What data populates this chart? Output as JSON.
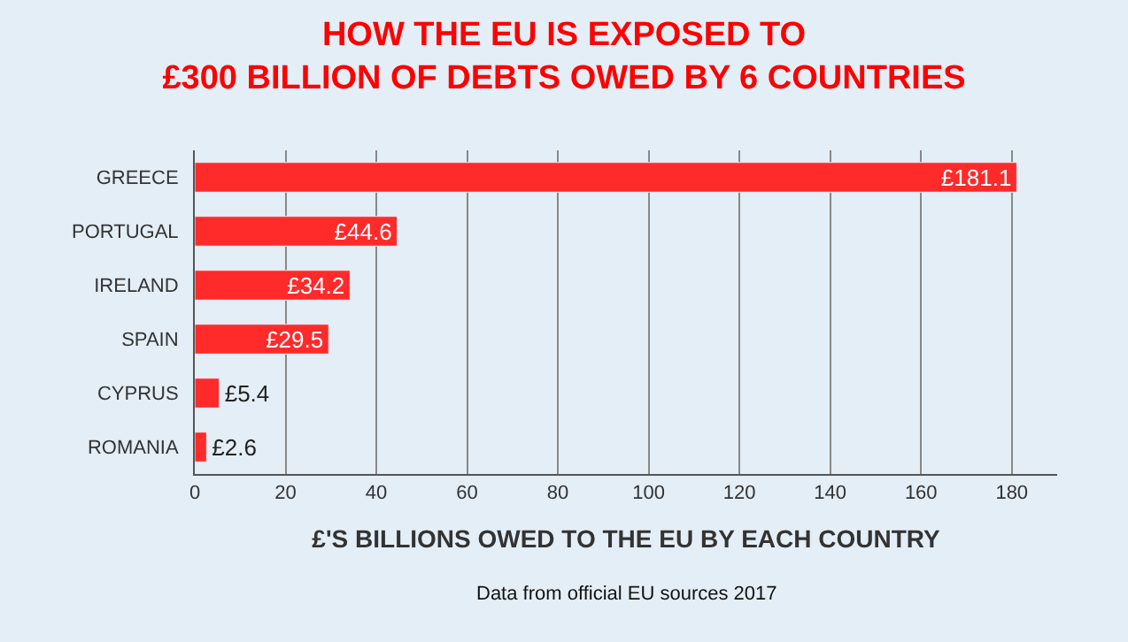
{
  "chart_data": {
    "type": "bar",
    "orientation": "horizontal",
    "title": "HOW THE EU IS EXPOSED TO\n£300 BILLION OF DEBTS OWED BY 6 COUNTRIES",
    "xlabel": "£'S BILLIONS OWED TO THE EU BY EACH COUNTRY",
    "categories": [
      "GREECE",
      "PORTUGAL",
      "IRELAND",
      "SPAIN",
      "CYPRUS",
      "ROMANIA"
    ],
    "values": [
      181.1,
      44.6,
      34.2,
      29.5,
      5.4,
      2.6
    ],
    "value_labels": [
      "£181.1",
      "£44.6",
      "£34.2",
      "£29.5",
      "£5.4",
      "£2.6"
    ],
    "color": "#ff2a2a",
    "xlim": [
      0,
      190
    ],
    "xticks": [
      0,
      20,
      40,
      60,
      80,
      100,
      120,
      140,
      160,
      180
    ],
    "grid": "x",
    "annotations": [
      "Data from official EU sources 2017"
    ]
  }
}
